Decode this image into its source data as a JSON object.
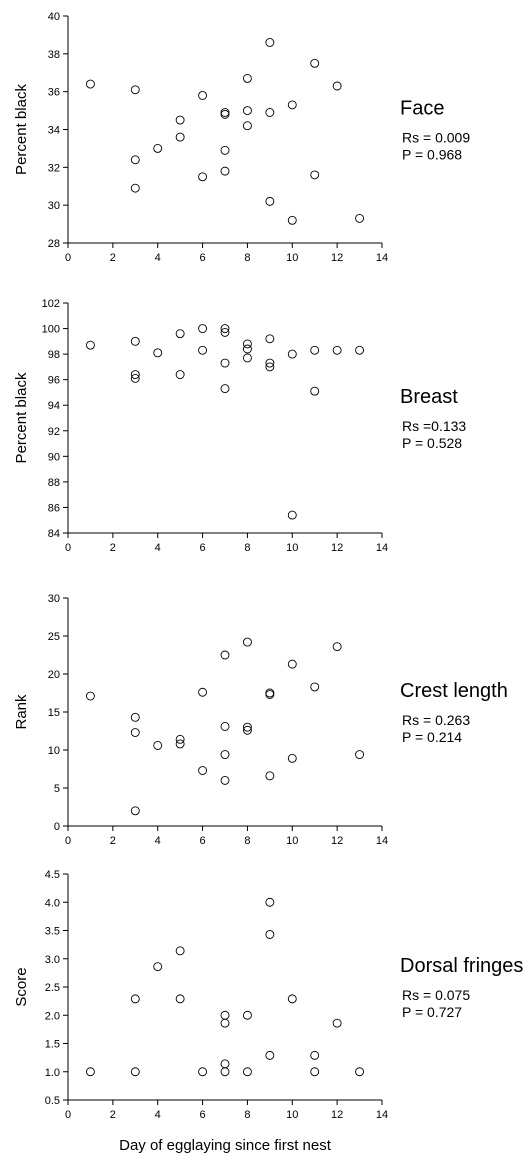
{
  "chart_data": [
    {
      "type": "scatter",
      "panel": "Face",
      "ylabel": "Percent black",
      "xlabel": "",
      "xlim": [
        0,
        14
      ],
      "ylim": [
        28,
        40
      ],
      "xticks": [
        0,
        2,
        4,
        6,
        8,
        10,
        12,
        14
      ],
      "yticks": [
        28,
        30,
        32,
        34,
        36,
        38,
        40
      ],
      "stats": [
        "Rs = 0.009",
        "P = 0.968"
      ],
      "points": [
        [
          1,
          36.4
        ],
        [
          3,
          36.1
        ],
        [
          3,
          32.4
        ],
        [
          3,
          30.9
        ],
        [
          4,
          33.0
        ],
        [
          5,
          34.5
        ],
        [
          5,
          33.6
        ],
        [
          6,
          35.8
        ],
        [
          6,
          31.5
        ],
        [
          7,
          34.9
        ],
        [
          7,
          34.8
        ],
        [
          7,
          32.9
        ],
        [
          7,
          31.8
        ],
        [
          8,
          36.7
        ],
        [
          8,
          35.0
        ],
        [
          8,
          34.2
        ],
        [
          9,
          38.6
        ],
        [
          9,
          34.9
        ],
        [
          9,
          30.2
        ],
        [
          10,
          35.3
        ],
        [
          10,
          29.2
        ],
        [
          11,
          37.5
        ],
        [
          11,
          31.6
        ],
        [
          12,
          36.3
        ],
        [
          13,
          29.3
        ]
      ]
    },
    {
      "type": "scatter",
      "panel": "Breast",
      "ylabel": "Percent black",
      "xlabel": "",
      "xlim": [
        0,
        14
      ],
      "ylim": [
        84,
        102
      ],
      "xticks": [
        0,
        2,
        4,
        6,
        8,
        10,
        12,
        14
      ],
      "yticks": [
        84,
        86,
        88,
        90,
        92,
        94,
        96,
        98,
        100,
        102
      ],
      "stats": [
        "Rs =0.133",
        "P = 0.528"
      ],
      "points": [
        [
          1,
          98.7
        ],
        [
          3,
          99.0
        ],
        [
          3,
          96.4
        ],
        [
          3,
          96.1
        ],
        [
          4,
          98.1
        ],
        [
          5,
          99.6
        ],
        [
          5,
          96.4
        ],
        [
          6,
          100.0
        ],
        [
          6,
          98.3
        ],
        [
          7,
          100.0
        ],
        [
          7,
          99.7
        ],
        [
          7,
          97.3
        ],
        [
          7,
          95.3
        ],
        [
          8,
          98.8
        ],
        [
          8,
          98.4
        ],
        [
          8,
          97.7
        ],
        [
          9,
          99.2
        ],
        [
          9,
          97.3
        ],
        [
          9,
          97.0
        ],
        [
          10,
          98.0
        ],
        [
          10,
          85.4
        ],
        [
          11,
          98.3
        ],
        [
          11,
          95.1
        ],
        [
          12,
          98.3
        ],
        [
          13,
          98.3
        ]
      ]
    },
    {
      "type": "scatter",
      "panel": "Crest length",
      "ylabel": "Rank",
      "xlabel": "",
      "xlim": [
        0,
        14
      ],
      "ylim": [
        0,
        30
      ],
      "xticks": [
        0,
        2,
        4,
        6,
        8,
        10,
        12,
        14
      ],
      "yticks": [
        0,
        5,
        10,
        15,
        20,
        25,
        30
      ],
      "stats": [
        "Rs = 0.263",
        "P = 0.214"
      ],
      "points": [
        [
          1,
          17.1
        ],
        [
          3,
          14.3
        ],
        [
          3,
          12.3
        ],
        [
          3,
          2.0
        ],
        [
          4,
          10.6
        ],
        [
          5,
          11.4
        ],
        [
          5,
          10.8
        ],
        [
          6,
          17.6
        ],
        [
          6,
          7.3
        ],
        [
          7,
          22.5
        ],
        [
          7,
          13.1
        ],
        [
          7,
          9.4
        ],
        [
          7,
          6.0
        ],
        [
          8,
          24.2
        ],
        [
          8,
          13.0
        ],
        [
          8,
          12.6
        ],
        [
          9,
          17.5
        ],
        [
          9,
          17.3
        ],
        [
          9,
          6.6
        ],
        [
          10,
          21.3
        ],
        [
          10,
          8.9
        ],
        [
          11,
          18.3
        ],
        [
          12,
          23.6
        ],
        [
          13,
          9.4
        ]
      ]
    },
    {
      "type": "scatter",
      "panel": "Dorsal fringes",
      "ylabel": "Score",
      "xlabel": "Day of egglaying since first nest",
      "xlim": [
        0,
        14
      ],
      "ylim": [
        0.5,
        4.5
      ],
      "xticks": [
        0,
        2,
        4,
        6,
        8,
        10,
        12,
        14
      ],
      "yticks": [
        "0.5",
        "1.0",
        "1.5",
        "2.0",
        "2.5",
        "3.0",
        "3.5",
        "4.0",
        "4.5"
      ],
      "stats": [
        "Rs = 0.075",
        "P = 0.727"
      ],
      "points": [
        [
          1,
          1.0
        ],
        [
          3,
          2.29
        ],
        [
          3,
          1.0
        ],
        [
          4,
          2.86
        ],
        [
          5,
          3.14
        ],
        [
          5,
          2.29
        ],
        [
          6,
          1.0
        ],
        [
          7,
          2.0
        ],
        [
          7,
          1.86
        ],
        [
          7,
          1.14
        ],
        [
          7,
          1.0
        ],
        [
          8,
          2.0
        ],
        [
          8,
          1.0
        ],
        [
          9,
          4.0
        ],
        [
          9,
          3.43
        ],
        [
          9,
          1.29
        ],
        [
          10,
          2.29
        ],
        [
          11,
          1.29
        ],
        [
          11,
          1.0
        ],
        [
          12,
          1.86
        ],
        [
          13,
          1.0
        ]
      ]
    }
  ]
}
